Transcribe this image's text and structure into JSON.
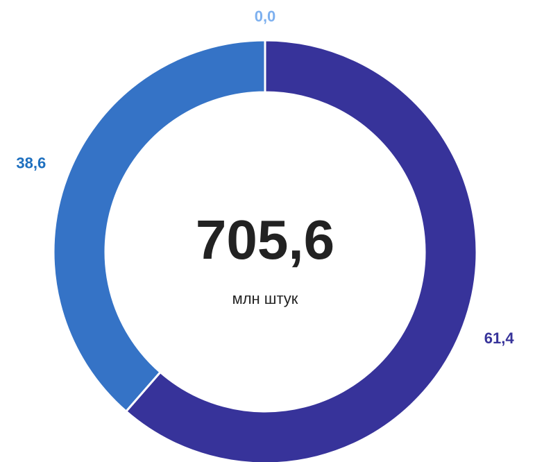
{
  "chart_data": {
    "type": "donut",
    "categories": [
      null,
      null,
      null
    ],
    "values": [
      61.4,
      38.6,
      0.0
    ],
    "value_labels": [
      "61,4",
      "38,6",
      "0,0"
    ],
    "colors": [
      "#37339a",
      "#3573c6",
      "#7db0ef"
    ],
    "label_colors": [
      "#37339a",
      "#1d6fbf",
      "#7db0ef"
    ],
    "center_text": "705,6",
    "center_subtext": "млн штук"
  }
}
